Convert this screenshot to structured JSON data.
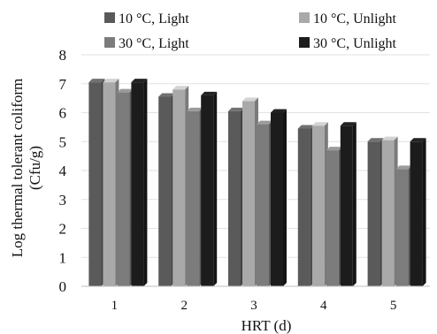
{
  "chart_data": {
    "type": "bar",
    "categories": [
      "1",
      "2",
      "3",
      "4",
      "5"
    ],
    "xlabel": "HRT (d)",
    "ylabel": "Log thermal tolerant coliform (Cfu/g)",
    "ylim": [
      0,
      8
    ],
    "yticks": [
      0,
      1,
      2,
      3,
      4,
      5,
      6,
      7,
      8
    ],
    "grid": true,
    "legend_position": "top",
    "series": [
      {
        "name": "10 °C, Light",
        "color": "#5a5a5a",
        "values": [
          7.05,
          6.55,
          6.05,
          5.45,
          5.0
        ]
      },
      {
        "name": "10 °C, Unlight",
        "color": "#a9a9a9",
        "values": [
          7.05,
          6.8,
          6.4,
          5.55,
          5.05
        ]
      },
      {
        "name": "30 °C, Light",
        "color": "#7c7c7c",
        "values": [
          6.7,
          6.05,
          5.6,
          4.7,
          4.05
        ]
      },
      {
        "name": "30 °C, Unlight",
        "color": "#1c1c1c",
        "values": [
          7.05,
          6.6,
          6.0,
          5.55,
          5.0
        ]
      }
    ]
  }
}
